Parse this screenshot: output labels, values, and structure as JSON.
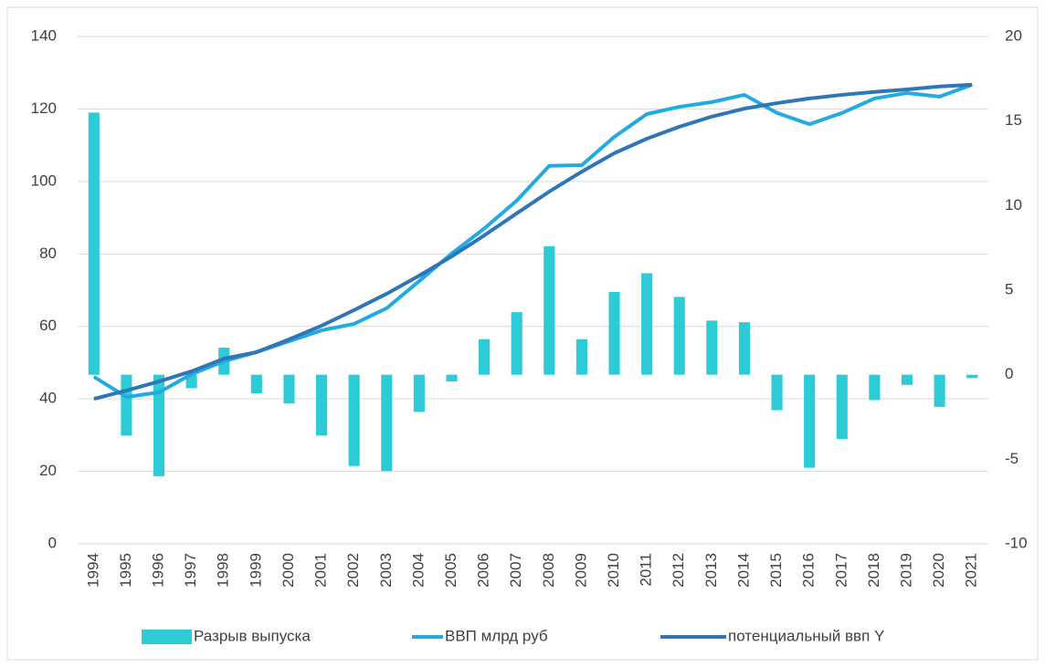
{
  "chart_data": {
    "type": "combo",
    "categories": [
      "1994",
      "1995",
      "1996",
      "1997",
      "1998",
      "1999",
      "2000",
      "2001",
      "2002",
      "2003",
      "2004",
      "2005",
      "2006",
      "2007",
      "2008",
      "2009",
      "2010",
      "2011",
      "2012",
      "2013",
      "2014",
      "2015",
      "2016",
      "2017",
      "2018",
      "2019",
      "2020",
      "2021"
    ],
    "series": [
      {
        "name": "Разрыв выпуска",
        "type": "bar",
        "axis": "y2",
        "color": "#2ccbd6",
        "values": [
          15.5,
          -3.6,
          -6.0,
          -0.8,
          1.6,
          -1.1,
          -1.7,
          -3.6,
          -5.4,
          -5.7,
          -2.2,
          -0.4,
          2.1,
          3.7,
          7.6,
          2.1,
          4.9,
          6.0,
          4.6,
          3.2,
          3.1,
          -2.1,
          -5.5,
          -3.8,
          -1.5,
          -0.6,
          -1.9,
          -0.2
        ]
      },
      {
        "name": "ВВП млрд руб",
        "type": "line",
        "color": "#22aae2",
        "values": [
          46.1,
          40.5,
          41.8,
          46.8,
          50.4,
          52.9,
          55.9,
          58.9,
          60.7,
          65,
          72.5,
          80.1,
          87,
          94.7,
          104.3,
          104.5,
          112.3,
          118.6,
          120.6,
          121.9,
          123.9,
          118.9,
          115.8,
          118.9,
          122.9,
          124.4,
          123.4,
          126.7
        ]
      },
      {
        "name": "потенциальный ввп Y",
        "type": "line",
        "color": "#2e76b7",
        "values": [
          40,
          42.3,
          44.8,
          47.6,
          51.1,
          52.9,
          56.4,
          60.2,
          64.5,
          69,
          74,
          79.3,
          85.1,
          91.2,
          97.2,
          102.7,
          107.8,
          111.8,
          115.1,
          117.9,
          120.1,
          121.6,
          122.9,
          123.9,
          124.7,
          125.4,
          126.2,
          126.7
        ]
      }
    ],
    "ylim": [
      0,
      140
    ],
    "yticks": [
      0,
      20,
      40,
      60,
      80,
      100,
      120,
      140
    ],
    "y2lim": [
      -10,
      20
    ],
    "y2ticks": [
      -10,
      -5,
      0,
      5,
      10,
      15,
      20
    ],
    "grid": true,
    "legend": "bottom"
  }
}
